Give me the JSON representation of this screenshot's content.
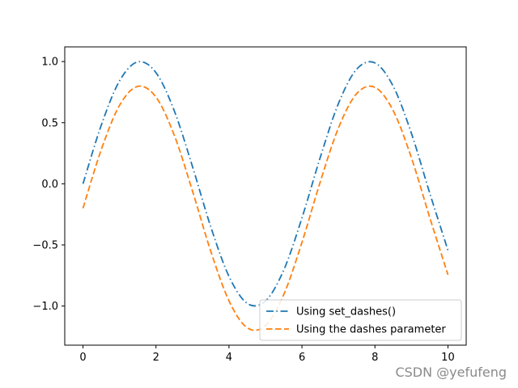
{
  "chart_data": {
    "type": "line",
    "title": "",
    "xlabel": "",
    "ylabel": "",
    "xlim": [
      -0.5,
      10.5
    ],
    "ylim": [
      -1.32,
      1.12
    ],
    "xticks": [
      0,
      2,
      4,
      6,
      8,
      10
    ],
    "xtick_labels": [
      "0",
      "2",
      "4",
      "6",
      "8",
      "10"
    ],
    "yticks": [
      -1.0,
      -0.5,
      0.0,
      0.5,
      1.0
    ],
    "ytick_labels": [
      "−1.0",
      "−0.5",
      "0.0",
      "0.5",
      "1.0"
    ],
    "grid": false,
    "legend_position": "lower-right",
    "series": [
      {
        "name": "Using set_dashes()",
        "color": "#1f77b4",
        "style": "dashdot",
        "x": [
          0.0,
          0.5,
          1.0,
          1.5,
          2.0,
          2.5,
          3.0,
          3.5,
          4.0,
          4.5,
          5.0,
          5.5,
          6.0,
          6.5,
          7.0,
          7.5,
          8.0,
          8.5,
          9.0,
          9.5,
          10.0
        ],
        "y": [
          0.0,
          0.479,
          0.841,
          0.997,
          0.909,
          0.598,
          0.141,
          -0.351,
          -0.757,
          -0.978,
          -0.959,
          -0.706,
          -0.279,
          0.215,
          0.657,
          0.938,
          0.989,
          0.798,
          0.412,
          -0.075,
          -0.544
        ]
      },
      {
        "name": "Using the dashes parameter",
        "color": "#ff7f0e",
        "style": "dashed",
        "x": [
          0.0,
          0.5,
          1.0,
          1.5,
          2.0,
          2.5,
          3.0,
          3.5,
          4.0,
          4.5,
          5.0,
          5.5,
          6.0,
          6.5,
          7.0,
          7.5,
          8.0,
          8.5,
          9.0,
          9.5,
          10.0
        ],
        "y": [
          -0.2,
          0.279,
          0.641,
          0.797,
          0.709,
          0.398,
          -0.059,
          -0.551,
          -0.957,
          -1.178,
          -1.159,
          -0.906,
          -0.479,
          0.015,
          0.457,
          0.738,
          0.789,
          0.598,
          0.212,
          -0.275,
          -0.744
        ]
      }
    ]
  },
  "watermark": "CSDN @yefufeng"
}
